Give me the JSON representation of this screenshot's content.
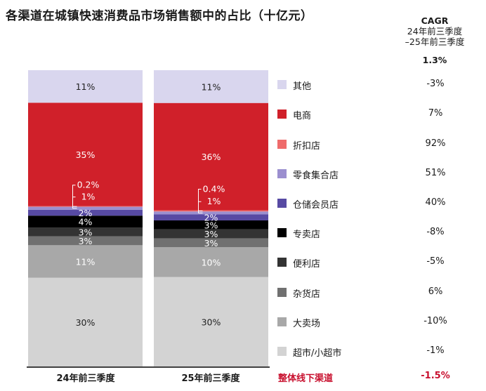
{
  "title": "各渠道在城镇快速消费品市场销售额中的占比（十亿元）",
  "cagr_header": {
    "line1": "CAGR",
    "line2": "24年前三季度",
    "line3": "–25年前三季度",
    "total": "1.3%"
  },
  "total_row": {
    "label": "整体线下渠道",
    "value": "-1.5%"
  },
  "colors": {
    "其他": "#d9d6ee",
    "电商": "#d0202a",
    "折扣店": "#ef6b6b",
    "零食集合店": "#9b8fcf",
    "仓储会员店": "#574aa3",
    "专卖店": "#000000",
    "便利店": "#333333",
    "杂货店": "#707070",
    "大卖场": "#a8a8a8",
    "超市/小超市": "#d3d3d3",
    "accent": "#c8102e"
  },
  "chart_data": {
    "type": "bar",
    "stacked": true,
    "percent": true,
    "categories": [
      "24年前三季度",
      "25年前三季度"
    ],
    "series": [
      {
        "name": "超市/小超市",
        "values": [
          30,
          30
        ],
        "labels": [
          "30%",
          "30%"
        ],
        "cagr": "-1%"
      },
      {
        "name": "大卖场",
        "values": [
          11,
          10
        ],
        "labels": [
          "11%",
          "10%"
        ],
        "cagr": "-10%"
      },
      {
        "name": "杂货店",
        "values": [
          3,
          3
        ],
        "labels": [
          "3%",
          "3%"
        ],
        "cagr": "6%"
      },
      {
        "name": "便利店",
        "values": [
          3,
          3
        ],
        "labels": [
          "3%",
          "3%"
        ],
        "cagr": "-5%"
      },
      {
        "name": "专卖店",
        "values": [
          4,
          3
        ],
        "labels": [
          "4%",
          "3%"
        ],
        "cagr": "-8%"
      },
      {
        "name": "仓储会员店",
        "values": [
          2,
          2
        ],
        "labels": [
          "2%",
          "2%"
        ],
        "cagr": "40%"
      },
      {
        "name": "零食集合店",
        "values": [
          1,
          1
        ],
        "labels": [
          "1%",
          "1%"
        ],
        "cagr": "51%"
      },
      {
        "name": "折扣店",
        "values": [
          0.2,
          0.4
        ],
        "labels": [
          "0.2%",
          "0.4%"
        ],
        "cagr": "92%"
      },
      {
        "name": "电商",
        "values": [
          35,
          36
        ],
        "labels": [
          "35%",
          "36%"
        ],
        "cagr": "7%"
      },
      {
        "name": "其他",
        "values": [
          11,
          11
        ],
        "labels": [
          "11%",
          "11%"
        ],
        "cagr": "-3%"
      }
    ],
    "legend_order": [
      "其他",
      "电商",
      "折扣店",
      "零食集合店",
      "仓储会员店",
      "专卖店",
      "便利店",
      "杂货店",
      "大卖场",
      "超市/小超市"
    ],
    "legend_position": "right"
  }
}
